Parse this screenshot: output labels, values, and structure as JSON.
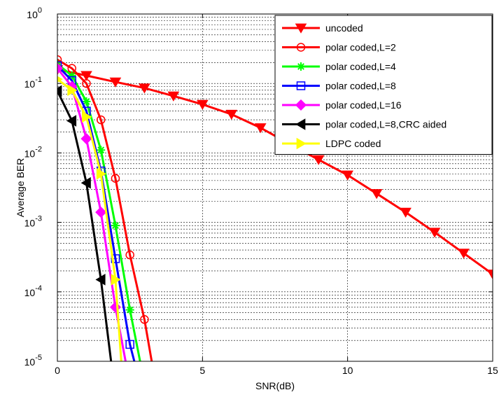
{
  "chart_data": {
    "type": "line",
    "title": "",
    "xlabel": "SNR(dB)",
    "ylabel": "Average BER",
    "xlim": [
      0,
      15
    ],
    "ylim": [
      1e-05,
      1
    ],
    "y_scale": "log",
    "grid": true,
    "legend_position": "top-right",
    "x_ticks": [
      0,
      5,
      10,
      15
    ],
    "x_tick_labels": [
      "0",
      "5",
      "10",
      "15"
    ],
    "y_ticks": [
      {
        "value": 1,
        "base": "10",
        "exp": "0"
      },
      {
        "value": 0.1,
        "base": "10",
        "exp": "-1"
      },
      {
        "value": 0.01,
        "base": "10",
        "exp": "-2"
      },
      {
        "value": 0.001,
        "base": "10",
        "exp": "-3"
      },
      {
        "value": 0.0001,
        "base": "10",
        "exp": "-4"
      },
      {
        "value": 1e-05,
        "base": "10",
        "exp": "-5"
      }
    ],
    "series": [
      {
        "name": "uncoded",
        "color": "#ff0000",
        "marker": "triangle-down",
        "x": [
          0,
          1,
          2,
          3,
          4,
          5,
          6,
          7,
          8,
          9,
          10,
          11,
          12,
          13,
          14,
          15
        ],
        "y": [
          0.158,
          0.13,
          0.105,
          0.086,
          0.066,
          0.05,
          0.036,
          0.023,
          0.0135,
          0.008,
          0.0048,
          0.0026,
          0.0014,
          0.00072,
          0.00036,
          0.00018
        ]
      },
      {
        "name": "polar coded,L=2",
        "color": "#ff0000",
        "marker": "circle",
        "x": [
          0,
          0.5,
          1,
          1.5,
          2,
          2.5,
          3,
          3.25
        ],
        "y": [
          0.22,
          0.165,
          0.1,
          0.03,
          0.0043,
          0.00034,
          4e-05,
          1e-05
        ]
      },
      {
        "name": "polar coded,L=4",
        "color": "#00ff00",
        "marker": "star",
        "x": [
          0,
          0.5,
          1,
          1.5,
          2,
          2.5,
          2.85
        ],
        "y": [
          0.19,
          0.13,
          0.055,
          0.011,
          0.0009,
          5.5e-05,
          1e-05
        ]
      },
      {
        "name": "polar coded,L=8",
        "color": "#0000ff",
        "marker": "square",
        "x": [
          0,
          0.5,
          1,
          1.5,
          2,
          2.5,
          2.65
        ],
        "y": [
          0.18,
          0.11,
          0.04,
          0.0055,
          0.0003,
          1.75e-05,
          1e-05
        ]
      },
      {
        "name": "polar coded,L=16",
        "color": "#ff00ff",
        "marker": "diamond",
        "x": [
          0,
          0.5,
          1,
          1.5,
          2,
          2.35
        ],
        "y": [
          0.165,
          0.09,
          0.016,
          0.0014,
          6e-05,
          1e-05
        ]
      },
      {
        "name": "polar coded,L=8,CRC aided",
        "color": "#000000",
        "marker": "triangle-left",
        "x": [
          0,
          0.5,
          1,
          1.5,
          1.85
        ],
        "y": [
          0.078,
          0.029,
          0.0037,
          0.00015,
          1e-05
        ]
      },
      {
        "name": "LDPC coded",
        "color": "#ffff00",
        "marker": "triangle-right",
        "x": [
          0,
          0.5,
          1,
          1.5,
          2,
          2.2
        ],
        "y": [
          0.115,
          0.08,
          0.033,
          0.005,
          0.00015,
          1e-05
        ]
      }
    ]
  }
}
